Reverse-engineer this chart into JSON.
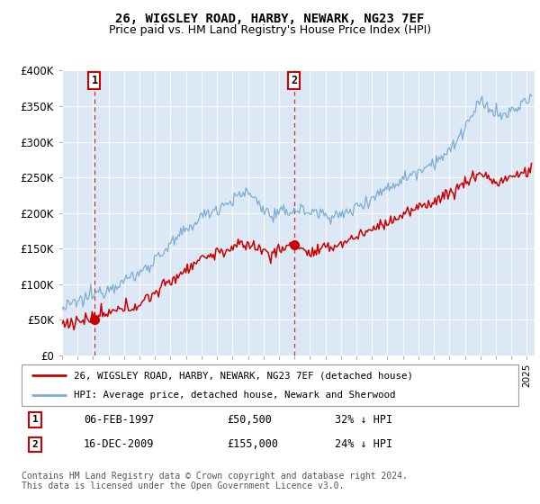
{
  "title": "26, WIGSLEY ROAD, HARBY, NEWARK, NG23 7EF",
  "subtitle": "Price paid vs. HM Land Registry's House Price Index (HPI)",
  "ylim": [
    0,
    400000
  ],
  "yticks": [
    0,
    50000,
    100000,
    150000,
    200000,
    250000,
    300000,
    350000,
    400000
  ],
  "ytick_labels": [
    "£0",
    "£50K",
    "£100K",
    "£150K",
    "£200K",
    "£250K",
    "£300K",
    "£350K",
    "£400K"
  ],
  "xlim_start": 1995.0,
  "xlim_end": 2025.5,
  "plot_bg_color": "#dce8f5",
  "transaction1_x": 1997.09,
  "transaction1_y": 50500,
  "transaction2_x": 2009.96,
  "transaction2_y": 155000,
  "line_color_red": "#cc0000",
  "line_color_blue": "#7aaed4",
  "legend_label_red": "26, WIGSLEY ROAD, HARBY, NEWARK, NG23 7EF (detached house)",
  "legend_label_blue": "HPI: Average price, detached house, Newark and Sherwood",
  "transaction1_date": "06-FEB-1997",
  "transaction1_price": "£50,500",
  "transaction1_hpi": "32% ↓ HPI",
  "transaction2_date": "16-DEC-2009",
  "transaction2_price": "£155,000",
  "transaction2_hpi": "24% ↓ HPI",
  "footnote": "Contains HM Land Registry data © Crown copyright and database right 2024.\nThis data is licensed under the Open Government Licence v3.0."
}
